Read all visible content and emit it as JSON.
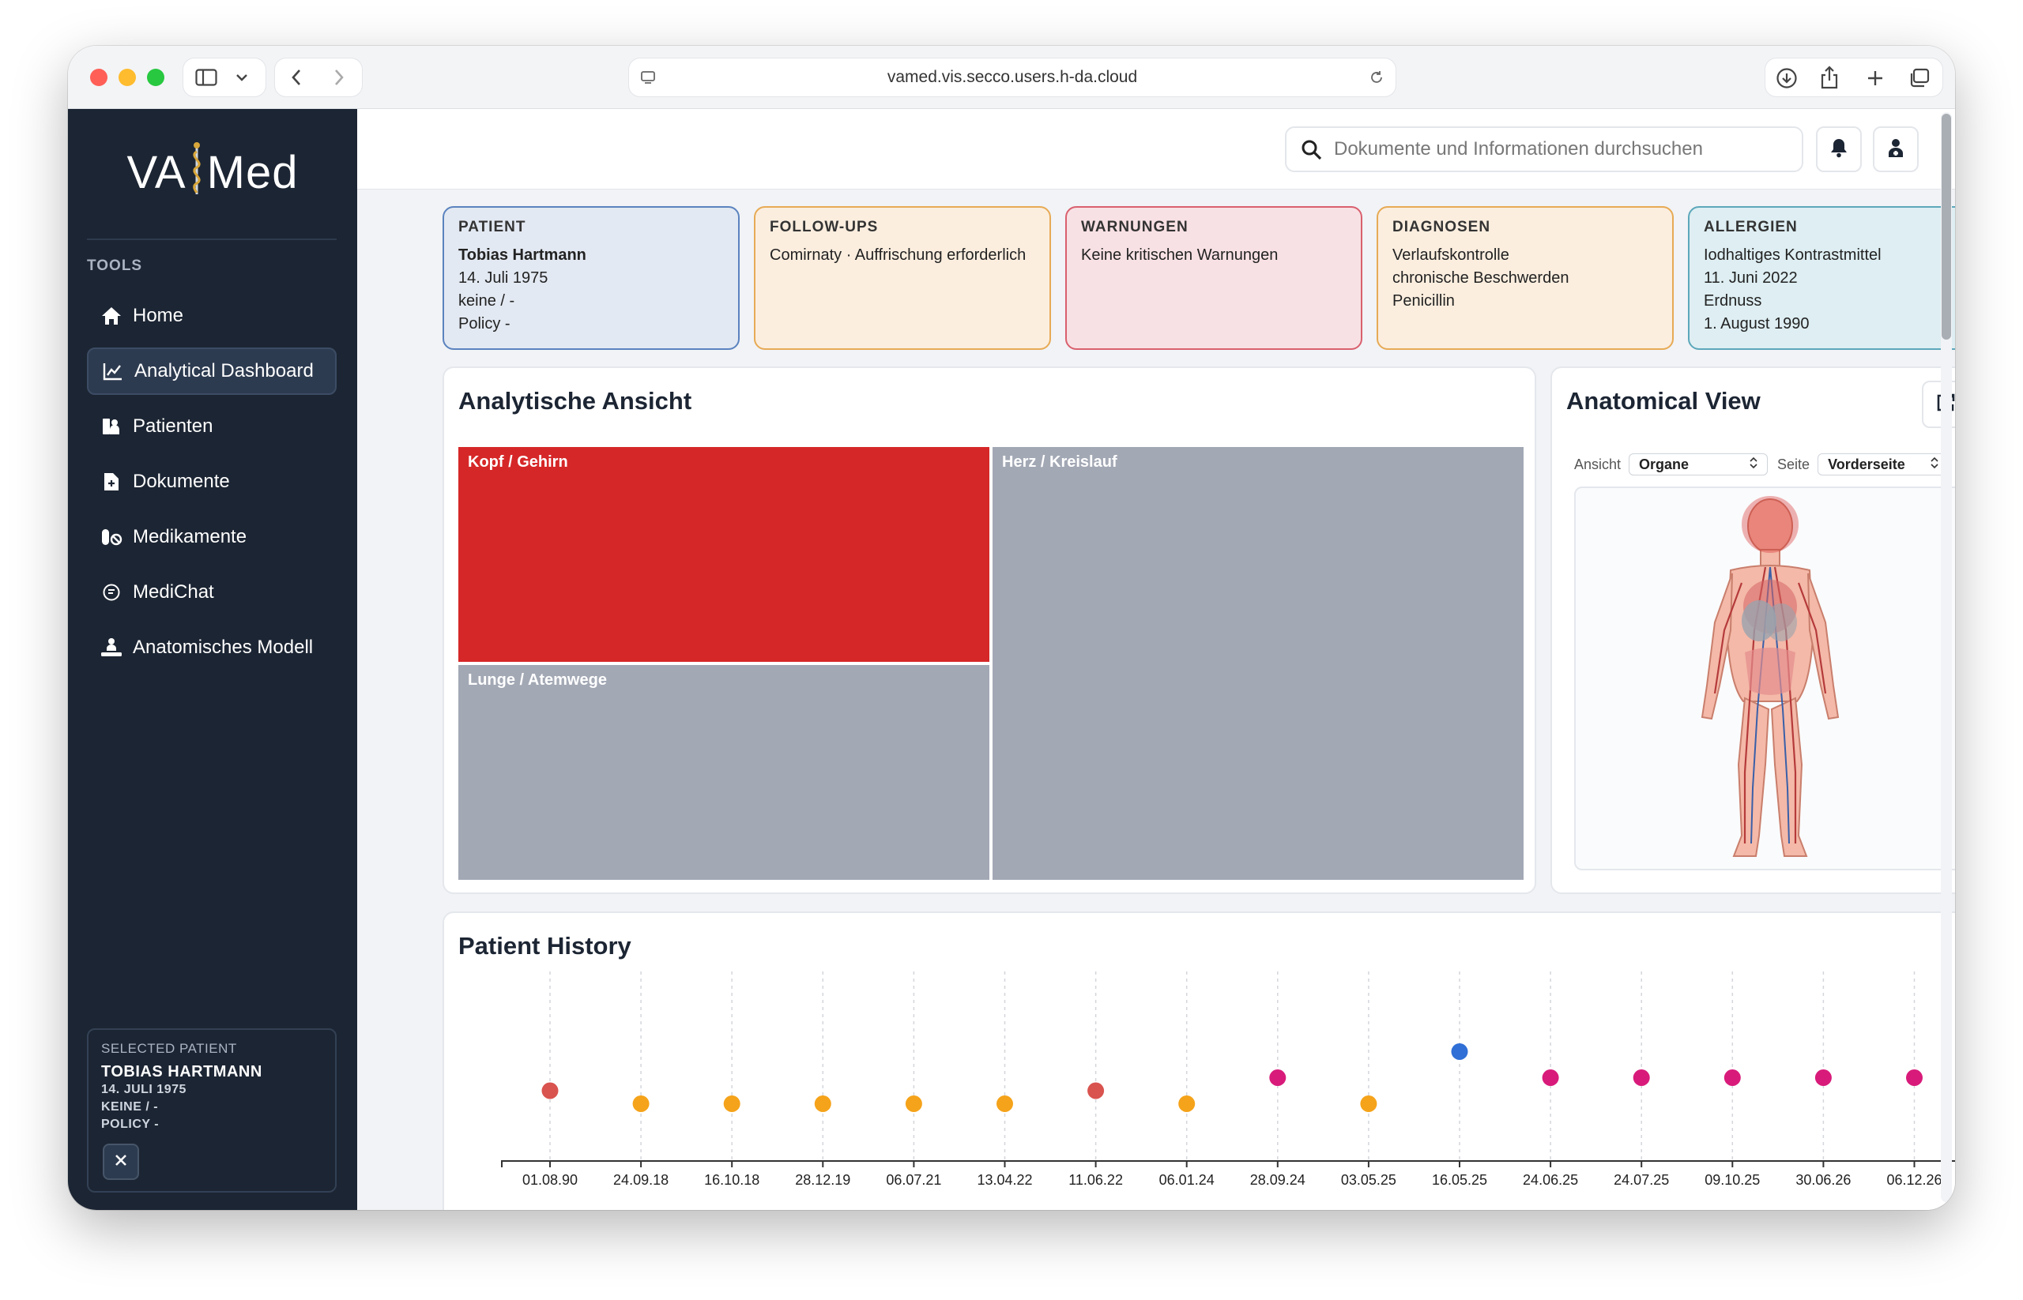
{
  "browser": {
    "url": "vamed.vis.secco.users.h-da.cloud"
  },
  "sidebar": {
    "logo_left": "VA",
    "logo_right": "Med",
    "section_label": "TOOLS",
    "items": [
      {
        "label": "Home",
        "icon": "home-icon"
      },
      {
        "label": "Analytical Dashboard",
        "icon": "chart-line-icon",
        "active": true
      },
      {
        "label": "Patienten",
        "icon": "patient-icon"
      },
      {
        "label": "Dokumente",
        "icon": "document-icon"
      },
      {
        "label": "Medikamente",
        "icon": "pills-icon"
      },
      {
        "label": "MediChat",
        "icon": "chat-icon"
      },
      {
        "label": "Anatomisches Modell",
        "icon": "person-icon"
      }
    ],
    "selected_patient": {
      "label": "SELECTED PATIENT",
      "name": "TOBIAS HARTMANN",
      "birth": "14. JULI 1975",
      "insurance": "KEINE / -",
      "policy": "POLICY -"
    }
  },
  "header": {
    "search_placeholder": "Dokumente und Informationen durchsuchen"
  },
  "cards": {
    "patient": {
      "title": "PATIENT",
      "name": "Tobias Hartmann",
      "birth": "14. Juli 1975",
      "insurance": "keine / -",
      "policy": "Policy -"
    },
    "followups": {
      "title": "FOLLOW-UPS",
      "line1": "Comirnaty · Auffrischung erforderlich"
    },
    "warnings": {
      "title": "WARNUNGEN",
      "line1": "Keine kritischen Warnungen"
    },
    "diagnoses": {
      "title": "DIAGNOSEN",
      "line1": "Verlaufskontrolle",
      "line2": "chronische Beschwerden",
      "line3": "Penicillin"
    },
    "allergies": {
      "title": "ALLERGIEN",
      "line1": "Iodhaltiges Kontrastmittel",
      "line2": "11. Juni 2022",
      "line3": "Erdnuss",
      "line4": "1. August 1990"
    }
  },
  "analytic": {
    "title": "Analytische Ansicht",
    "treemap": [
      {
        "label": "Kopf / Gehirn",
        "color": "#d62728"
      },
      {
        "label": "Lunge / Atemwege",
        "color": "#a2a8b4"
      },
      {
        "label": "Herz / Kreislauf",
        "color": "#a2a8b4"
      }
    ]
  },
  "anatomical": {
    "title": "Anatomical View",
    "view_label": "Ansicht",
    "view_value": "Organe",
    "side_label": "Seite",
    "side_value": "Vorderseite"
  },
  "history": {
    "title": "Patient History"
  },
  "chart_data": {
    "type": "scatter",
    "title": "Patient History",
    "x": [
      "01.08.90",
      "24.09.18",
      "16.10.18",
      "28.12.19",
      "06.07.21",
      "13.04.22",
      "11.06.22",
      "06.01.24",
      "28.09.24",
      "03.05.25",
      "16.05.25",
      "24.06.25",
      "24.07.25",
      "09.10.25",
      "30.06.26",
      "06.12.26"
    ],
    "y": [
      2,
      1,
      1,
      1,
      1,
      1,
      2,
      1,
      3,
      1,
      5,
      3,
      3,
      3,
      3,
      3
    ],
    "colors": [
      "#d9534f",
      "#f5a31a",
      "#f5a31a",
      "#f5a31a",
      "#f5a31a",
      "#f5a31a",
      "#d9534f",
      "#f5a31a",
      "#d81b7a",
      "#f5a31a",
      "#2f6fd6",
      "#d81b7a",
      "#d81b7a",
      "#d81b7a",
      "#d81b7a",
      "#d81b7a"
    ],
    "grid": "vertical dashed"
  }
}
